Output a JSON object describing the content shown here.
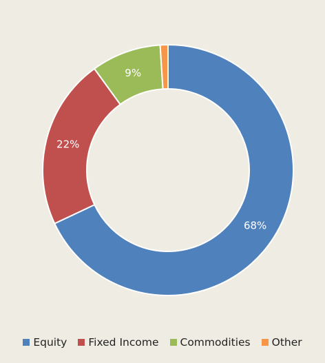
{
  "chart_data": {
    "type": "pie",
    "variant": "doughnut",
    "title": "",
    "categories": [
      "Equity",
      "Fixed Income",
      "Commodities",
      "Other"
    ],
    "values": [
      68,
      22,
      9,
      1
    ],
    "labels": [
      "68%",
      "22%",
      "9%",
      ""
    ],
    "colors": [
      "#4f81bd",
      "#c0504d",
      "#9bbb59",
      "#f79646"
    ],
    "start_angle": "12 o'clock, clockwise",
    "legend_position": "bottom"
  },
  "legend": {
    "items": [
      {
        "label": "Equity",
        "color": "#4f81bd"
      },
      {
        "label": "Fixed Income",
        "color": "#c0504d"
      },
      {
        "label": "Commodities",
        "color": "#9bbb59"
      },
      {
        "label": "Other",
        "color": "#f79646"
      }
    ]
  }
}
